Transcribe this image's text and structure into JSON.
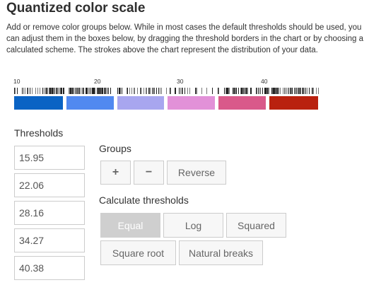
{
  "title": "Quantized color scale",
  "description": "Add or remove color groups below. While in most cases the default thresholds should be used, you can adjust them in the boxes below, by dragging the threshold borders in the chart or by choosing a calculated scheme. The strokes above the chart represent the distribution of your data.",
  "scale": {
    "tick_labels": [
      "10",
      "20",
      "30",
      "40"
    ],
    "colors": [
      "#0a63c4",
      "#5189f0",
      "#a8a6ef",
      "#e291d8",
      "#d9598a",
      "#b9210f"
    ]
  },
  "thresholds": {
    "heading": "Thresholds",
    "values": [
      "15.95",
      "22.06",
      "28.16",
      "34.27",
      "40.38"
    ]
  },
  "groups": {
    "heading": "Groups",
    "add_label": "+",
    "remove_label": "−",
    "reverse_label": "Reverse"
  },
  "calculate": {
    "heading": "Calculate thresholds",
    "buttons": [
      "Equal",
      "Log",
      "Squared",
      "Square root",
      "Natural breaks"
    ],
    "selected": "Equal"
  }
}
